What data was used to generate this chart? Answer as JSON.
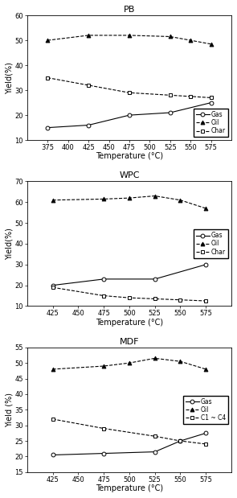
{
  "PB": {
    "title": "PB",
    "xlabel": "Temperature (°C)",
    "ylabel": "Yield(%)",
    "xlim": [
      350,
      600
    ],
    "ylim": [
      10,
      60
    ],
    "yticks": [
      10,
      20,
      30,
      40,
      50,
      60
    ],
    "xticks": [
      375,
      400,
      425,
      450,
      475,
      500,
      525,
      550,
      575
    ],
    "Gas": {
      "x": [
        375,
        425,
        475,
        525,
        575
      ],
      "y": [
        15,
        16,
        20,
        21,
        25
      ]
    },
    "Oil": {
      "x": [
        375,
        425,
        475,
        525,
        550,
        575
      ],
      "y": [
        50,
        52,
        52,
        51.5,
        50,
        48.5
      ]
    },
    "Char": {
      "x": [
        375,
        425,
        475,
        525,
        550,
        575
      ],
      "y": [
        35,
        32,
        29,
        28,
        27.5,
        27
      ]
    }
  },
  "WPC": {
    "title": "WPC",
    "xlabel": "Temperature (°C)",
    "ylabel": "Yield(%)",
    "xlim": [
      400,
      600
    ],
    "ylim": [
      10,
      70
    ],
    "yticks": [
      10,
      20,
      30,
      40,
      50,
      60,
      70
    ],
    "xticks": [
      425,
      450,
      475,
      500,
      525,
      550,
      575
    ],
    "Gas": {
      "x": [
        425,
        475,
        525,
        575
      ],
      "y": [
        20,
        23,
        23,
        30
      ]
    },
    "Oil": {
      "x": [
        425,
        475,
        500,
        525,
        550,
        575
      ],
      "y": [
        61,
        61.5,
        62,
        63,
        61,
        57
      ]
    },
    "Char": {
      "x": [
        425,
        475,
        500,
        525,
        550,
        575
      ],
      "y": [
        19,
        15,
        14,
        13.5,
        13,
        12.5
      ]
    }
  },
  "MDF": {
    "title": "MDF",
    "xlabel": "Temperature (°C)",
    "ylabel": "Yield (%)",
    "xlim": [
      400,
      600
    ],
    "ylim": [
      15,
      55
    ],
    "yticks": [
      15,
      20,
      25,
      30,
      35,
      40,
      45,
      50,
      55
    ],
    "xticks": [
      425,
      450,
      475,
      500,
      525,
      550,
      575
    ],
    "Gas": {
      "x": [
        425,
        475,
        525,
        550,
        575
      ],
      "y": [
        20.5,
        21,
        21.5,
        25,
        27.5
      ]
    },
    "Oil": {
      "x": [
        425,
        475,
        500,
        525,
        550,
        575
      ],
      "y": [
        48,
        49,
        50,
        51.5,
        50.5,
        48
      ]
    },
    "C1C4": {
      "x": [
        425,
        475,
        525,
        550,
        575
      ],
      "y": [
        32,
        29,
        26.5,
        25,
        24
      ]
    }
  },
  "legend_fontsize": 5.5,
  "tick_fontsize": 6,
  "label_fontsize": 7,
  "title_fontsize": 8
}
